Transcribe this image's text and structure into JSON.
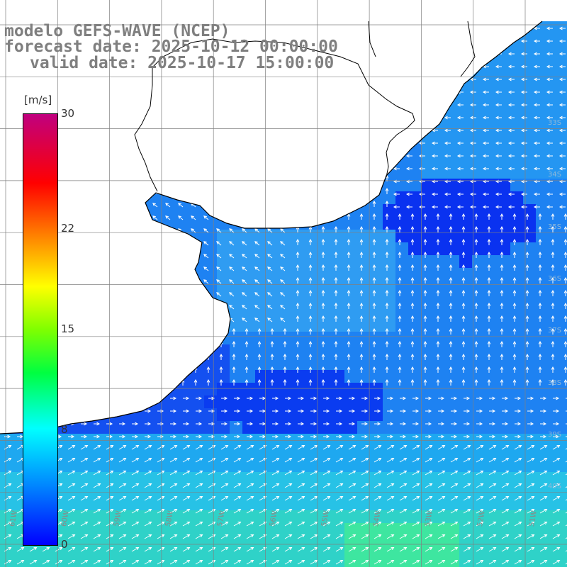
{
  "title": {
    "line1": "modelo GEFS-WAVE (NCEP)",
    "line2": "forecast date: 2025-10-12 00:00:00",
    "line3": "valid date: 2025-10-17 15:00:00"
  },
  "colorbar": {
    "units": "[m/s]",
    "ticks": [
      {
        "label": "30",
        "value": 30
      },
      {
        "label": "22",
        "value": 22
      },
      {
        "label": "15",
        "value": 15
      },
      {
        "label": "8",
        "value": 8
      },
      {
        "label": "0",
        "value": 0
      }
    ],
    "range": [
      0,
      30
    ]
  },
  "lon_labels": [
    "61W",
    "60W",
    "59W",
    "58W",
    "57W",
    "56W",
    "55W",
    "54W",
    "53W",
    "52W",
    "51W"
  ],
  "lat_labels": [
    "33S",
    "34S",
    "35S",
    "36S",
    "37S",
    "38S",
    "39S",
    "40S"
  ],
  "colors": {
    "land": "#ffffff",
    "grid": "#808080",
    "coast": "#000000",
    "arrow": "#ffffff",
    "dark_blue": "#0a3cf0",
    "mid_blue": "#2f86f2",
    "light_cyan": "#1fb8f0",
    "green_cyan": "#3ee0b8"
  }
}
